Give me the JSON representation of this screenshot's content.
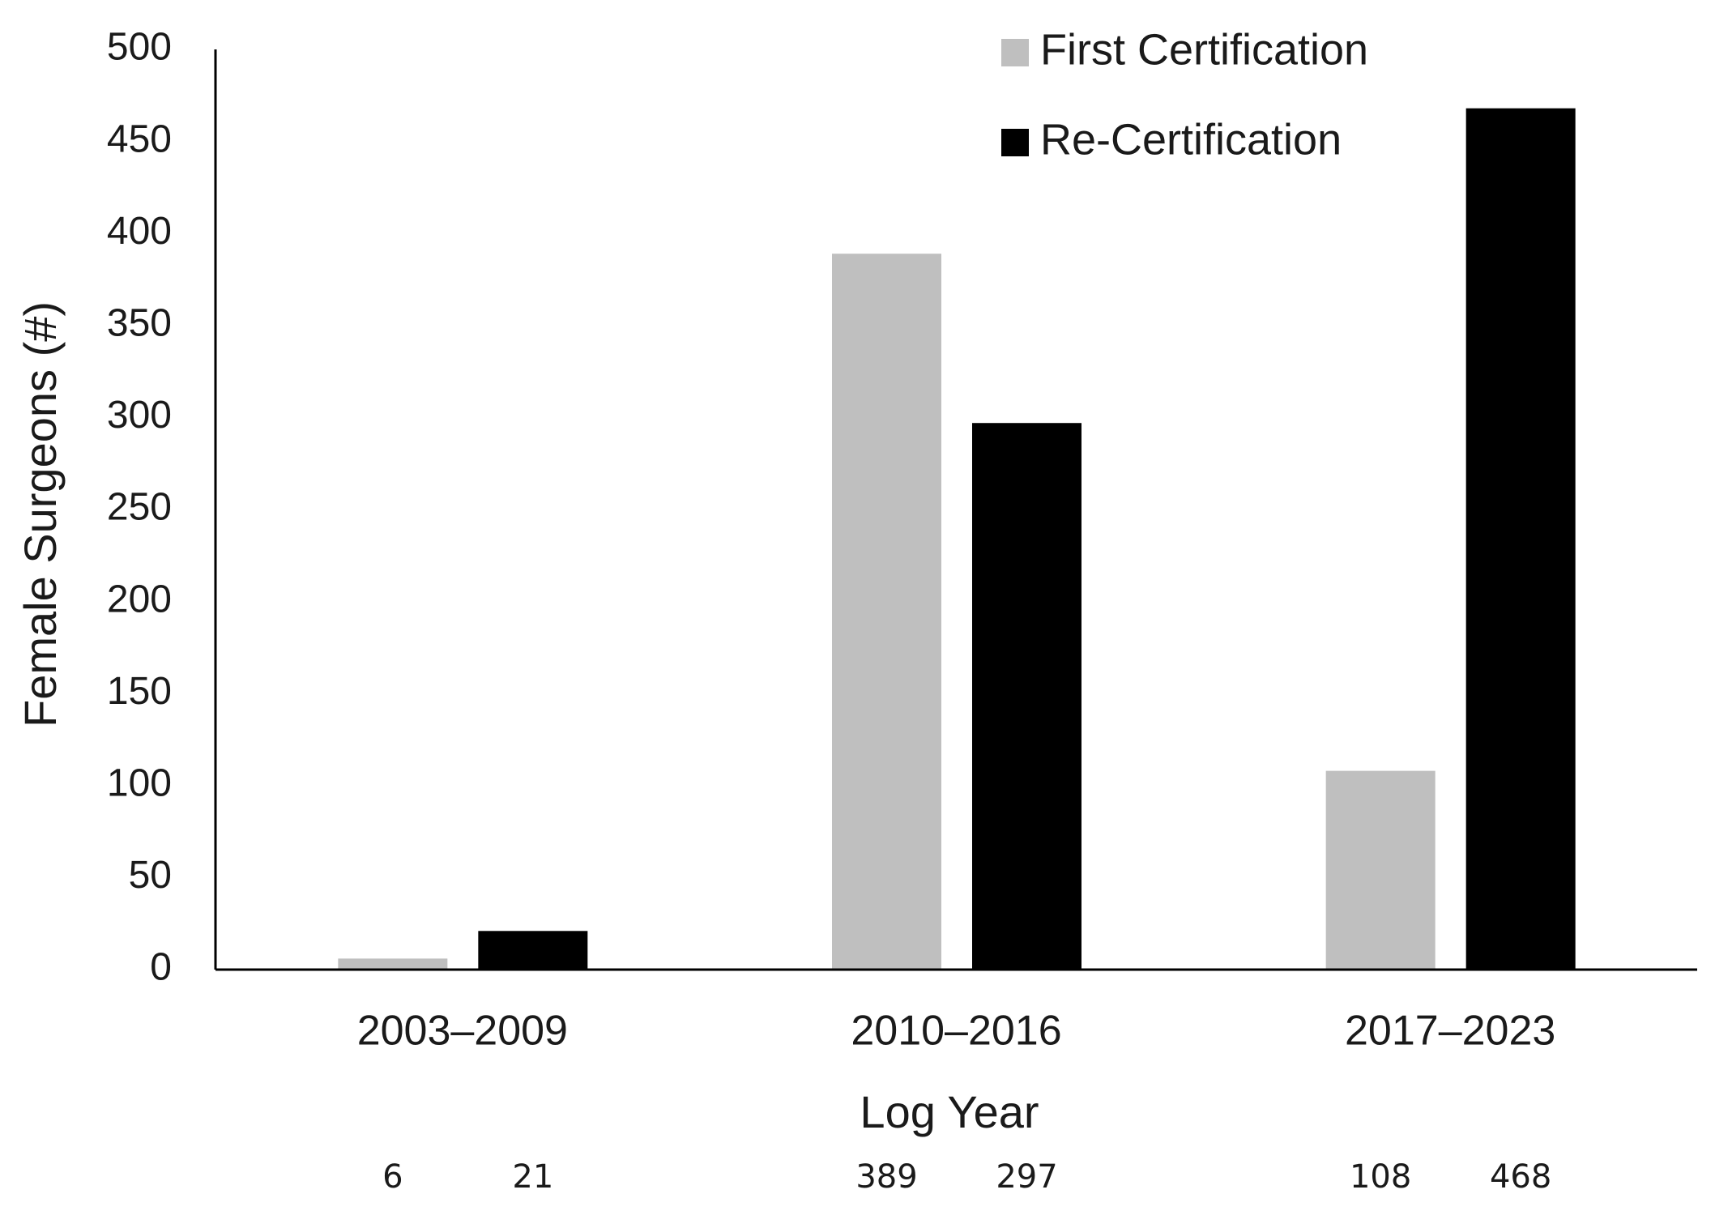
{
  "chart_data": {
    "type": "bar",
    "categories": [
      "2003–2009",
      "2010–2016",
      "2017–2023"
    ],
    "series": [
      {
        "name": "First Certification",
        "color": "#bfbfbf",
        "values": [
          6,
          389,
          108
        ]
      },
      {
        "name": "Re-Certification",
        "color": "#000000",
        "values": [
          21,
          297,
          468
        ]
      }
    ],
    "x_label": "Log Year",
    "y_label": "Female Surgeons (#)",
    "ylim": [
      0,
      500
    ],
    "yticks": [
      0,
      50,
      100,
      150,
      200,
      250,
      300,
      350,
      400,
      450,
      500
    ],
    "grid": false,
    "legend": "top-right"
  }
}
